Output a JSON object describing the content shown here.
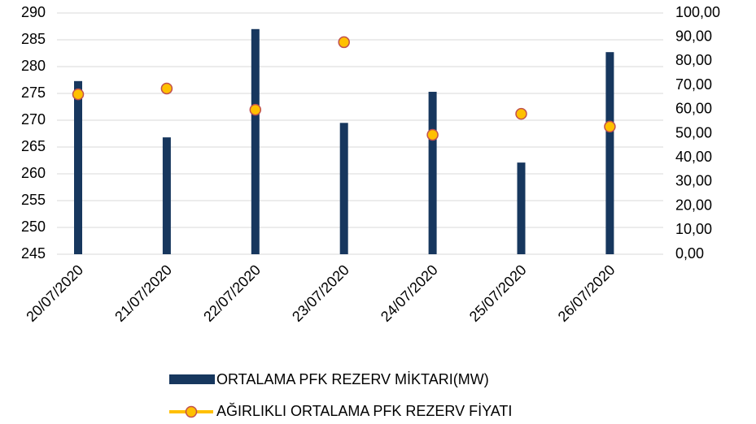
{
  "chart_data": {
    "type": "bar_line",
    "categories": [
      "20/07/2020",
      "21/07/2020",
      "22/07/2020",
      "23/07/2020",
      "24/07/2020",
      "25/07/2020",
      "26/07/2020"
    ],
    "series": [
      {
        "name": "ORTALAMA PFK REZERV MİKTARI(MW)",
        "type": "bar",
        "color": "#17375e",
        "values": [
          277.3,
          266.8,
          287.0,
          269.5,
          275.3,
          262.1,
          282.7
        ]
      },
      {
        "name": "AĞIRLIKLI ORTALAMA PFK REZERV FİYATI",
        "type": "scatter",
        "axis": "y2",
        "color": "#ffc000",
        "edge_color": "#c0504d",
        "values": [
          66.3,
          68.7,
          59.9,
          87.9,
          49.5,
          58.2,
          52.9
        ]
      }
    ],
    "ylim": [
      245,
      290
    ],
    "yticks": [
      245,
      250,
      255,
      260,
      265,
      270,
      275,
      280,
      285,
      290
    ],
    "y2lim": [
      0,
      100
    ],
    "y2ticks": [
      {
        "value": 0,
        "label": "0,00"
      },
      {
        "value": 10,
        "label": "10,00"
      },
      {
        "value": 20,
        "label": "20,00"
      },
      {
        "value": 30,
        "label": "30,00"
      },
      {
        "value": 40,
        "label": "40,00"
      },
      {
        "value": 50,
        "label": "50,00"
      },
      {
        "value": 60,
        "label": "60,00"
      },
      {
        "value": 70,
        "label": "70,00"
      },
      {
        "value": 80,
        "label": "80,00"
      },
      {
        "value": 90,
        "label": "90,00"
      },
      {
        "value": 100,
        "label": "100,00"
      }
    ],
    "grid": true,
    "legend": "bottom"
  }
}
